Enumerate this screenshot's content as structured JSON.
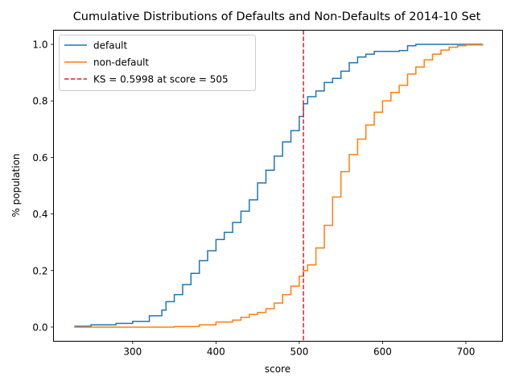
{
  "chart_data": {
    "type": "line",
    "title": "Cumulative Distributions of Defaults and Non-Defaults of 2014-10 Set",
    "xlabel": "score",
    "ylabel": "% population",
    "xlim": [
      205,
      744
    ],
    "ylim": [
      -0.05,
      1.05
    ],
    "xticks": [
      300,
      400,
      500,
      600,
      700
    ],
    "yticks": [
      0.0,
      0.2,
      0.4,
      0.6,
      0.8,
      1.0
    ],
    "xtick_labels": [
      "300",
      "400",
      "500",
      "600",
      "700"
    ],
    "ytick_labels": [
      "0.0",
      "0.2",
      "0.4",
      "0.6",
      "0.8",
      "1.0"
    ],
    "grid": false,
    "legend_position": "upper-left",
    "series": [
      {
        "name": "default",
        "color": "#1f77b4",
        "x": [
          230,
          250,
          280,
          300,
          320,
          335,
          340,
          350,
          360,
          370,
          380,
          390,
          400,
          410,
          420,
          430,
          440,
          450,
          460,
          470,
          480,
          490,
          500,
          505,
          510,
          520,
          530,
          540,
          550,
          560,
          570,
          580,
          590,
          600,
          610,
          620,
          630,
          640,
          660,
          680,
          700,
          720
        ],
        "y": [
          0.003,
          0.008,
          0.013,
          0.02,
          0.04,
          0.06,
          0.09,
          0.115,
          0.15,
          0.19,
          0.235,
          0.27,
          0.31,
          0.335,
          0.37,
          0.41,
          0.45,
          0.51,
          0.555,
          0.605,
          0.655,
          0.695,
          0.745,
          0.79,
          0.815,
          0.835,
          0.865,
          0.88,
          0.905,
          0.935,
          0.955,
          0.965,
          0.975,
          0.975,
          0.975,
          0.978,
          0.995,
          1.0,
          1.0,
          1.0,
          1.0,
          1.0
        ]
      },
      {
        "name": "non-default",
        "color": "#ff7f0e",
        "x": [
          230,
          300,
          350,
          380,
          400,
          420,
          430,
          440,
          450,
          460,
          470,
          480,
          490,
          500,
          505,
          510,
          520,
          530,
          540,
          550,
          560,
          570,
          580,
          590,
          600,
          610,
          620,
          630,
          640,
          650,
          660,
          670,
          680,
          690,
          700,
          720
        ],
        "y": [
          0.0,
          0.0,
          0.002,
          0.008,
          0.018,
          0.025,
          0.035,
          0.045,
          0.052,
          0.065,
          0.085,
          0.115,
          0.145,
          0.18,
          0.2,
          0.22,
          0.28,
          0.36,
          0.46,
          0.55,
          0.61,
          0.665,
          0.715,
          0.76,
          0.8,
          0.83,
          0.855,
          0.895,
          0.92,
          0.945,
          0.965,
          0.98,
          0.99,
          0.995,
          0.998,
          1.0
        ]
      }
    ],
    "vlines": [
      {
        "x": 505,
        "color": "#d62728",
        "style": "dashed",
        "label": "KS = 0.5998 at score = 505"
      }
    ]
  }
}
